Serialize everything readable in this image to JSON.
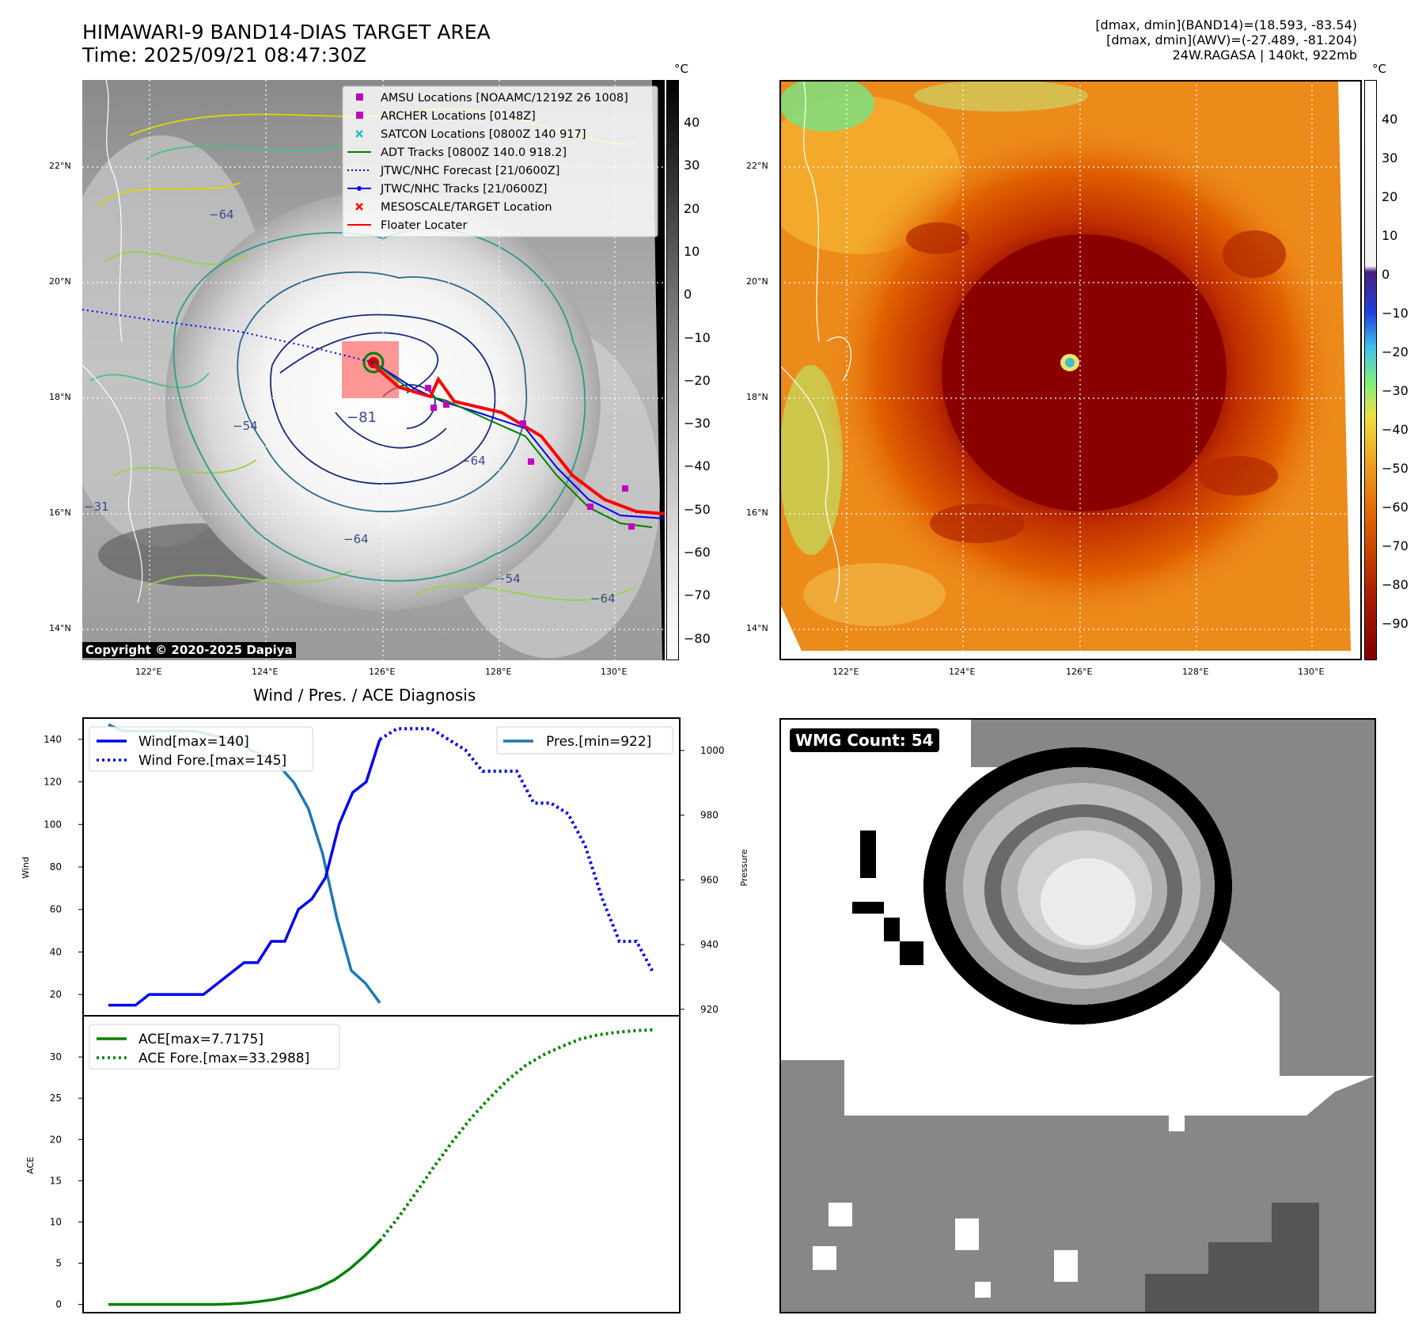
{
  "header": {
    "title_line1": "HIMAWARI-9 BAND14-DIAS TARGET AREA",
    "title_line2": "Time: 2025/09/21 08:47:30Z",
    "info_line1": "[dmax, dmin](BAND14)=(18.593, -83.54)",
    "info_line2": "[dmax, dmin](AWV)=(-27.489, -81.204)",
    "info_line3": "24W.RAGASA | 140kt, 922mb"
  },
  "map": {
    "lon_ticks": [
      "122°E",
      "124°E",
      "126°E",
      "128°E",
      "130°E"
    ],
    "lat_ticks": [
      "22°N",
      "20°N",
      "18°N",
      "16°N",
      "14°N"
    ],
    "copyright": "Copyright © 2020-2025 Dapiya",
    "contour_labels": [
      "−64",
      "−81",
      "−64",
      "−54",
      "−31",
      "−64",
      "−54",
      "−64"
    ],
    "legend": [
      {
        "label": "AMSU Locations [NOAAMC/1219Z 26 1008]",
        "color": "#c000c0",
        "marker": "square"
      },
      {
        "label": "ARCHER Locations [0148Z]",
        "color": "#c000c0",
        "marker": "square"
      },
      {
        "label": "SATCON Locations [0800Z 140 917]",
        "color": "#20c0c0",
        "marker": "x"
      },
      {
        "label": "ADT Tracks [0800Z 140.0 918.2]",
        "color": "#008000",
        "marker": "line"
      },
      {
        "label": "JTWC/NHC Forecast [21/0600Z]",
        "color": "#0000ff",
        "marker": "dotted"
      },
      {
        "label": "JTWC/NHC Tracks [21/0600Z]",
        "color": "#0000ff",
        "marker": "line-dot"
      },
      {
        "label": "MESOSCALE/TARGET Location",
        "color": "#ff0000",
        "marker": "x"
      },
      {
        "label": "Floater Locater",
        "color": "#ff0000",
        "marker": "line"
      }
    ]
  },
  "colorbar_gray": {
    "unit": "°C",
    "ticks": [
      "40",
      "30",
      "20",
      "10",
      "0",
      "−10",
      "−20",
      "−30",
      "−40",
      "−50",
      "−60",
      "−70",
      "−80"
    ]
  },
  "colorbar_color": {
    "unit": "°C",
    "ticks": [
      "40",
      "30",
      "20",
      "10",
      "0",
      "−10",
      "−20",
      "−30",
      "−40",
      "−50",
      "−60",
      "−70",
      "−80",
      "−90"
    ]
  },
  "chart_data": [
    {
      "type": "line",
      "title": "Wind / Pres. / ACE Diagnosis",
      "ylabel": "Wind",
      "y2label": "Pressure",
      "ylim": [
        10,
        150
      ],
      "y2lim": [
        918,
        1010
      ],
      "yticks": [
        "140",
        "120",
        "100",
        "80",
        "60",
        "40",
        "20"
      ],
      "y2ticks": [
        "1000",
        "980",
        "960",
        "940",
        "920"
      ],
      "series": [
        {
          "name": "Wind[max=140]",
          "color": "#0000ee",
          "style": "solid",
          "axis": "left",
          "values": [
            15,
            15,
            15,
            20,
            20,
            20,
            20,
            20,
            25,
            30,
            35,
            35,
            45,
            45,
            60,
            65,
            75,
            100,
            115,
            120,
            140
          ]
        },
        {
          "name": "Wind Fore.[max=145]",
          "color": "#0000ee",
          "style": "dotted",
          "axis": "left",
          "values": [
            140,
            145,
            145,
            145,
            140,
            135,
            125,
            125,
            125,
            110,
            110,
            105,
            90,
            65,
            45,
            45,
            30
          ]
        },
        {
          "name": "Pres.[min=922]",
          "color": "#1f77b4",
          "style": "solid",
          "axis": "right",
          "values": [
            1008,
            1006,
            1006,
            1006,
            1006,
            1006,
            1006,
            1005,
            1004,
            1003,
            1000,
            998,
            995,
            990,
            982,
            968,
            948,
            932,
            928,
            922
          ]
        }
      ]
    },
    {
      "type": "line",
      "ylabel": "ACE",
      "ylim": [
        -1,
        35
      ],
      "yticks": [
        "30",
        "25",
        "20",
        "15",
        "10",
        "5",
        "0"
      ],
      "series": [
        {
          "name": "ACE[max=7.7175]",
          "color": "#008000",
          "style": "solid",
          "values": [
            0,
            0,
            0,
            0,
            0,
            0,
            0,
            0,
            0.05,
            0.15,
            0.35,
            0.6,
            1.0,
            1.5,
            2.1,
            3.0,
            4.3,
            5.9,
            7.7175
          ]
        },
        {
          "name": "ACE Fore.[max=33.2988]",
          "color": "#008000",
          "style": "dotted",
          "values": [
            7.7175,
            10.5,
            13.6,
            16.8,
            19.8,
            22.6,
            25.0,
            27.2,
            29.0,
            30.3,
            31.3,
            32.2,
            32.7,
            33.0,
            33.2,
            33.2988
          ]
        }
      ]
    }
  ],
  "wmg": {
    "label": "WMG Count: 54"
  }
}
